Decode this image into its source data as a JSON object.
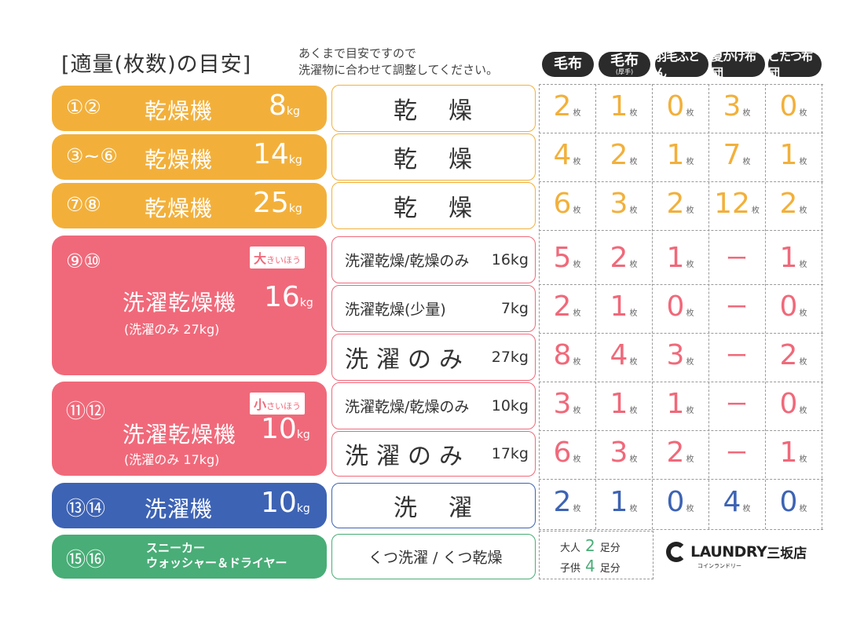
{
  "title": "[適量(枚数)の目安]",
  "note": "あくまで目安ですので\n洗濯物に合わせて調整してください。",
  "headers": [
    {
      "main": "毛布",
      "sub": ""
    },
    {
      "main": "毛布",
      "sub": "(厚手)"
    },
    {
      "main": "羽毛ふとん",
      "sub": ""
    },
    {
      "main": "夏かけ布団",
      "sub": ""
    },
    {
      "main": "こたつ布団",
      "sub": ""
    }
  ],
  "machines": [
    {
      "nums": "①②",
      "name": "乾燥機",
      "capacity": "8",
      "unit": "kg"
    },
    {
      "nums": "③~⑥",
      "name": "乾燥機",
      "capacity": "14",
      "unit": "kg"
    },
    {
      "nums": "⑦⑧",
      "name": "乾燥機",
      "capacity": "25",
      "unit": "kg"
    },
    {
      "nums": "⑨⑩",
      "name": "洗濯乾燥機",
      "capacity": "16",
      "unit": "kg",
      "sub": "(洗濯のみ 27kg)",
      "tag_big": "大",
      "tag_rest": "きいほう"
    },
    {
      "nums": "⑪⑫",
      "name": "洗濯乾燥機",
      "capacity": "10",
      "unit": "kg",
      "sub": "(洗濯のみ 17kg)",
      "tag_big": "小",
      "tag_rest": "さいほう"
    },
    {
      "nums": "⑬⑭",
      "name": "洗濯機",
      "capacity": "10",
      "unit": "kg"
    },
    {
      "nums": "⑮⑯",
      "name": "スニーカー\nウォッシャー＆ドライヤー"
    }
  ],
  "modes": [
    {
      "label": "乾燥",
      "kg": ""
    },
    {
      "label": "乾燥",
      "kg": ""
    },
    {
      "label": "乾燥",
      "kg": ""
    },
    {
      "label": "洗濯乾燥/乾燥のみ",
      "kg": "16kg"
    },
    {
      "label": "洗濯乾燥(少量)",
      "kg": "7kg"
    },
    {
      "label": "洗濯のみ",
      "kg": "27kg"
    },
    {
      "label": "洗濯乾燥/乾燥のみ",
      "kg": "10kg"
    },
    {
      "label": "洗濯のみ",
      "kg": "17kg"
    },
    {
      "label": "洗濯",
      "kg": ""
    },
    {
      "label": "くつ洗濯 / くつ乾燥",
      "kg": ""
    }
  ],
  "counts_unit": "枚",
  "counts": [
    [
      "2",
      "1",
      "0",
      "3",
      "0"
    ],
    [
      "4",
      "2",
      "1",
      "7",
      "1"
    ],
    [
      "6",
      "3",
      "2",
      "12",
      "2"
    ],
    [
      "5",
      "2",
      "1",
      "ー",
      "1"
    ],
    [
      "2",
      "1",
      "0",
      "ー",
      "0"
    ],
    [
      "8",
      "4",
      "3",
      "ー",
      "2"
    ],
    [
      "3",
      "1",
      "1",
      "ー",
      "0"
    ],
    [
      "6",
      "3",
      "2",
      "ー",
      "1"
    ],
    [
      "2",
      "1",
      "0",
      "4",
      "0"
    ]
  ],
  "shoes": {
    "adult_label": "大人",
    "adult_count": "2",
    "child_label": "子供",
    "child_count": "4",
    "unit": "足分"
  },
  "logo": {
    "main": "LAUNDRY",
    "store": "三坂店",
    "small": "コインランドリー"
  },
  "colors": {
    "orange": "#f2b03b",
    "pink": "#f0697a",
    "blue": "#3d63b4",
    "green": "#49ad77"
  }
}
